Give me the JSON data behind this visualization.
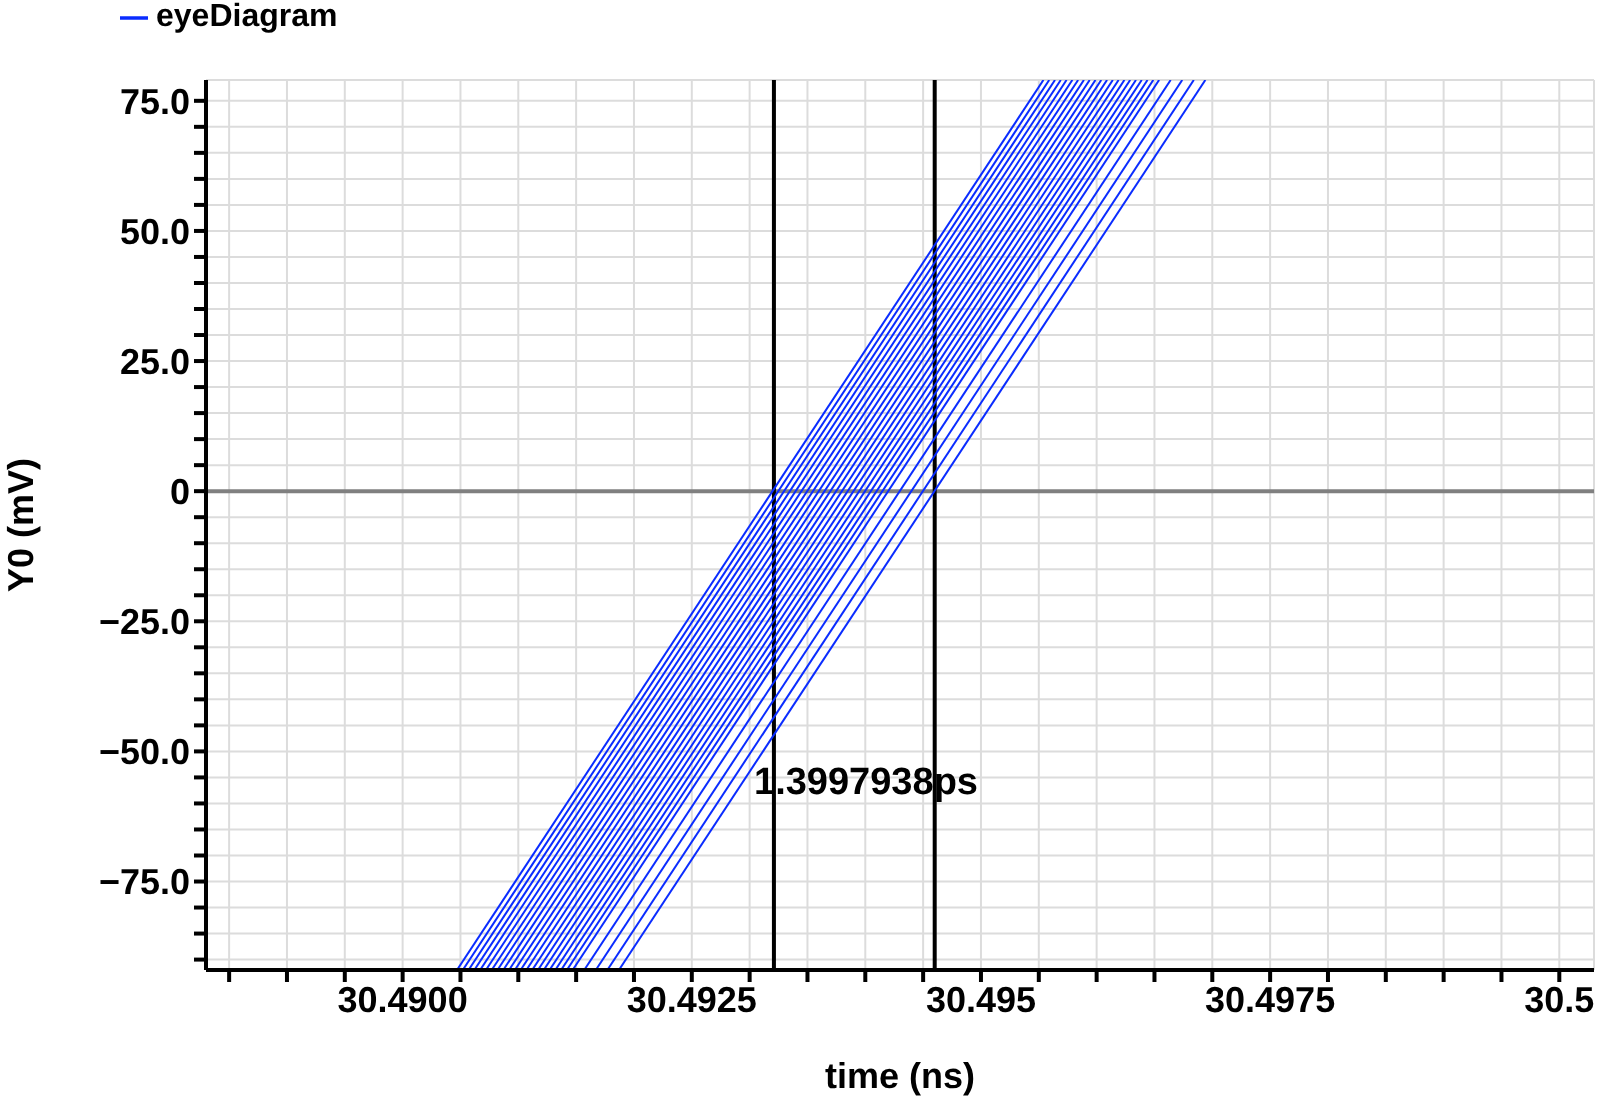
{
  "chart_data": {
    "type": "line",
    "xlabel": "time (ns)",
    "ylabel": "Y0 (mV)",
    "xlim": [
      30.4883,
      30.5003
    ],
    "ylim": [
      -92,
      79
    ],
    "xticks": [
      {
        "value": 30.4885,
        "label": null
      },
      {
        "value": 30.489,
        "label": null
      },
      {
        "value": 30.4895,
        "label": null
      },
      {
        "value": 30.49,
        "label": "30.4900"
      },
      {
        "value": 30.4905,
        "label": null
      },
      {
        "value": 30.491,
        "label": null
      },
      {
        "value": 30.4915,
        "label": null
      },
      {
        "value": 30.492,
        "label": null
      },
      {
        "value": 30.4925,
        "label": "30.4925"
      },
      {
        "value": 30.493,
        "label": null
      },
      {
        "value": 30.4935,
        "label": null
      },
      {
        "value": 30.494,
        "label": null
      },
      {
        "value": 30.4945,
        "label": null
      },
      {
        "value": 30.495,
        "label": "30.495"
      },
      {
        "value": 30.4955,
        "label": null
      },
      {
        "value": 30.496,
        "label": null
      },
      {
        "value": 30.4965,
        "label": null
      },
      {
        "value": 30.497,
        "label": null
      },
      {
        "value": 30.4975,
        "label": "30.4975"
      },
      {
        "value": 30.498,
        "label": null
      },
      {
        "value": 30.4985,
        "label": null
      },
      {
        "value": 30.499,
        "label": null
      },
      {
        "value": 30.4995,
        "label": null
      },
      {
        "value": 30.5,
        "label": "30.5"
      }
    ],
    "yticks": [
      {
        "value": -90,
        "label": null
      },
      {
        "value": -85,
        "label": null
      },
      {
        "value": -80,
        "label": null
      },
      {
        "value": -75,
        "label": "−75.0"
      },
      {
        "value": -70,
        "label": null
      },
      {
        "value": -65,
        "label": null
      },
      {
        "value": -60,
        "label": null
      },
      {
        "value": -55,
        "label": null
      },
      {
        "value": -50,
        "label": "−50.0"
      },
      {
        "value": -45,
        "label": null
      },
      {
        "value": -40,
        "label": null
      },
      {
        "value": -35,
        "label": null
      },
      {
        "value": -30,
        "label": null
      },
      {
        "value": -25,
        "label": "−25.0"
      },
      {
        "value": -20,
        "label": null
      },
      {
        "value": -15,
        "label": null
      },
      {
        "value": -10,
        "label": null
      },
      {
        "value": -5,
        "label": null
      },
      0,
      {
        "value": 5,
        "label": null
      },
      {
        "value": 10,
        "label": null
      },
      {
        "value": 15,
        "label": null
      },
      {
        "value": 20,
        "label": null
      },
      {
        "value": 25,
        "label": "25.0"
      },
      {
        "value": 30,
        "label": null
      },
      {
        "value": 35,
        "label": null
      },
      {
        "value": 40,
        "label": null
      },
      {
        "value": 45,
        "label": null
      },
      {
        "value": 50,
        "label": "50.0"
      },
      {
        "value": 55,
        "label": null
      },
      {
        "value": 60,
        "label": null
      },
      {
        "value": 65,
        "label": null
      },
      {
        "value": 70,
        "label": null
      },
      {
        "value": 75,
        "label": "75.0"
      }
    ],
    "grid": true,
    "legend": "top left",
    "series": [
      {
        "name": "eyeDiagram",
        "color": "#0a2cff",
        "x": [
          30.49047,
          30.49554
        ],
        "values": [
          -92,
          79
        ]
      },
      {
        "color": "#0a2cff",
        "x": [
          30.49052,
          30.49559
        ],
        "values": [
          -92,
          79
        ]
      },
      {
        "color": "#0a2cff",
        "x": [
          30.49057,
          30.49564
        ],
        "values": [
          -92,
          79
        ]
      },
      {
        "color": "#0a2cff",
        "x": [
          30.49062,
          30.49569
        ],
        "values": [
          -92,
          79
        ]
      },
      {
        "color": "#0a2cff",
        "x": [
          30.49067,
          30.49574
        ],
        "values": [
          -92,
          79
        ]
      },
      {
        "color": "#0a2cff",
        "x": [
          30.49072,
          30.49579
        ],
        "values": [
          -92,
          79
        ]
      },
      {
        "color": "#0a2cff",
        "x": [
          30.49077,
          30.49584
        ],
        "values": [
          -92,
          79
        ]
      },
      {
        "color": "#0a2cff",
        "x": [
          30.49082,
          30.49589
        ],
        "values": [
          -92,
          79
        ]
      },
      {
        "color": "#0a2cff",
        "x": [
          30.49087,
          30.49594
        ],
        "values": [
          -92,
          79
        ]
      },
      {
        "color": "#0a2cff",
        "x": [
          30.49092,
          30.49599
        ],
        "values": [
          -92,
          79
        ]
      },
      {
        "color": "#0a2cff",
        "x": [
          30.49097,
          30.49604
        ],
        "values": [
          -92,
          79
        ]
      },
      {
        "color": "#0a2cff",
        "x": [
          30.49102,
          30.49609
        ],
        "values": [
          -92,
          79
        ]
      },
      {
        "color": "#0a2cff",
        "x": [
          30.49107,
          30.49614
        ],
        "values": [
          -92,
          79
        ]
      },
      {
        "color": "#0a2cff",
        "x": [
          30.49112,
          30.49619
        ],
        "values": [
          -92,
          79
        ]
      },
      {
        "color": "#0a2cff",
        "x": [
          30.49117,
          30.49624
        ],
        "values": [
          -92,
          79
        ]
      },
      {
        "color": "#0a2cff",
        "x": [
          30.49122,
          30.49629
        ],
        "values": [
          -92,
          79
        ]
      },
      {
        "color": "#0a2cff",
        "x": [
          30.49127,
          30.49634
        ],
        "values": [
          -92,
          79
        ]
      },
      {
        "color": "#0a2cff",
        "x": [
          30.49132,
          30.49639
        ],
        "values": [
          -92,
          79
        ]
      },
      {
        "color": "#0a2cff",
        "x": [
          30.49137,
          30.49644
        ],
        "values": [
          -92,
          79
        ]
      },
      {
        "color": "#0a2cff",
        "x": [
          30.49142,
          30.49649
        ],
        "values": [
          -92,
          79
        ]
      },
      {
        "color": "#0a2cff",
        "x": [
          30.49147,
          30.49654
        ],
        "values": [
          -92,
          79
        ]
      },
      {
        "color": "#0a2cff",
        "x": [
          30.49157,
          30.49664
        ],
        "values": [
          -92,
          79
        ]
      },
      {
        "color": "#0a2cff",
        "x": [
          30.49167,
          30.49674
        ],
        "values": [
          -92,
          79
        ]
      },
      {
        "color": "#0a2cff",
        "x": [
          30.49177,
          30.49684
        ],
        "values": [
          -92,
          79
        ]
      },
      {
        "color": "#0a2cff",
        "x": [
          30.49187,
          30.49694
        ],
        "values": [
          -92,
          79
        ]
      }
    ],
    "ref_lines": [
      {
        "axis": "y",
        "value": 0,
        "color": "#808080"
      },
      {
        "axis": "x",
        "value": 30.49321,
        "color": "#000000"
      },
      {
        "axis": "x",
        "value": 30.4946,
        "color": "#000000"
      }
    ],
    "annotations": [
      "1.3997938ps"
    ]
  }
}
